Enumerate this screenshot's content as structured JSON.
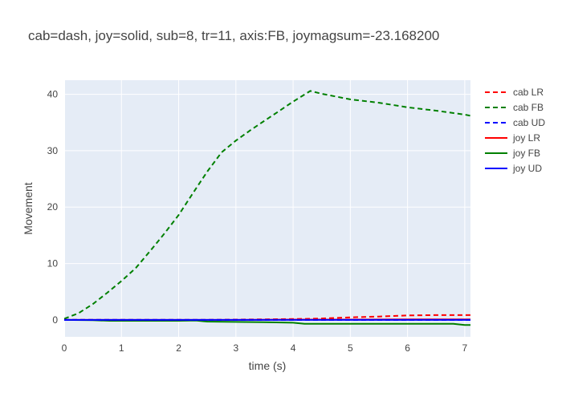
{
  "chart_data": {
    "type": "line",
    "title": "cab=dash, joy=solid, sub=8, tr=11, axis:FB, joymagsum=-23.168200",
    "xlabel": "time (s)",
    "ylabel": "Movement",
    "xlim": [
      0,
      7.1
    ],
    "ylim": [
      -3,
      42.5
    ],
    "x_ticks": [
      0,
      1,
      2,
      3,
      4,
      5,
      6,
      7
    ],
    "y_ticks": [
      0,
      10,
      20,
      30,
      40
    ],
    "grid": true,
    "legend_position": "right",
    "colors": {
      "plot_bg": "#e5ecf6",
      "grid": "#ffffff",
      "text": "#444444"
    },
    "series": [
      {
        "name": "cab LR",
        "color": "#ff0000",
        "dash": "dash",
        "x": [
          0,
          0.5,
          1,
          1.5,
          2,
          2.5,
          3,
          3.5,
          4,
          4.3,
          4.5,
          5,
          5.5,
          6,
          6.5,
          7,
          7.1
        ],
        "y": [
          0,
          0,
          0,
          0,
          0,
          0,
          0.05,
          0.1,
          0.15,
          0.2,
          0.25,
          0.45,
          0.6,
          0.8,
          0.85,
          0.85,
          0.85
        ]
      },
      {
        "name": "cab FB",
        "color": "#008000",
        "dash": "dash",
        "x": [
          0,
          0.25,
          0.5,
          0.75,
          1,
          1.25,
          1.5,
          1.75,
          2,
          2.25,
          2.5,
          2.75,
          3,
          3.25,
          3.5,
          3.75,
          4,
          4.3,
          4.5,
          5,
          5.5,
          6,
          6.5,
          7,
          7.1
        ],
        "y": [
          0.2,
          1.2,
          2.8,
          4.8,
          6.9,
          9.2,
          12.2,
          15.3,
          18.6,
          22.5,
          26.3,
          29.7,
          31.8,
          33.6,
          35.3,
          37.0,
          38.7,
          40.6,
          40.1,
          39.1,
          38.5,
          37.7,
          37.1,
          36.4,
          36.2
        ]
      },
      {
        "name": "cab UD",
        "color": "#0000ff",
        "dash": "dash",
        "x": [
          0,
          1,
          2,
          3,
          4,
          5,
          6,
          7,
          7.1
        ],
        "y": [
          0,
          0,
          0,
          0,
          0,
          0,
          0,
          0,
          0
        ]
      },
      {
        "name": "joy LR",
        "color": "#ff0000",
        "dash": "solid",
        "x": [
          0,
          1,
          2,
          3,
          4,
          5,
          6,
          7,
          7.1
        ],
        "y": [
          0,
          0,
          0,
          0,
          0.05,
          0.05,
          0.1,
          0.1,
          0.1
        ]
      },
      {
        "name": "joy FB",
        "color": "#008000",
        "dash": "solid",
        "x": [
          0,
          0.5,
          0.8,
          1.5,
          2,
          2.3,
          2.5,
          3,
          3.5,
          4,
          4.2,
          4.4,
          5,
          5.5,
          6,
          6.5,
          6.8,
          7,
          7.1
        ],
        "y": [
          0,
          -0.05,
          -0.15,
          -0.15,
          -0.15,
          -0.1,
          -0.3,
          -0.35,
          -0.4,
          -0.5,
          -0.7,
          -0.7,
          -0.7,
          -0.7,
          -0.7,
          -0.7,
          -0.7,
          -0.9,
          -0.9
        ]
      },
      {
        "name": "joy UD",
        "color": "#0000ff",
        "dash": "solid",
        "x": [
          0,
          1,
          2,
          3,
          4,
          5,
          6,
          7,
          7.1
        ],
        "y": [
          0,
          0,
          0,
          0,
          0,
          0,
          0,
          0,
          0
        ]
      }
    ]
  }
}
